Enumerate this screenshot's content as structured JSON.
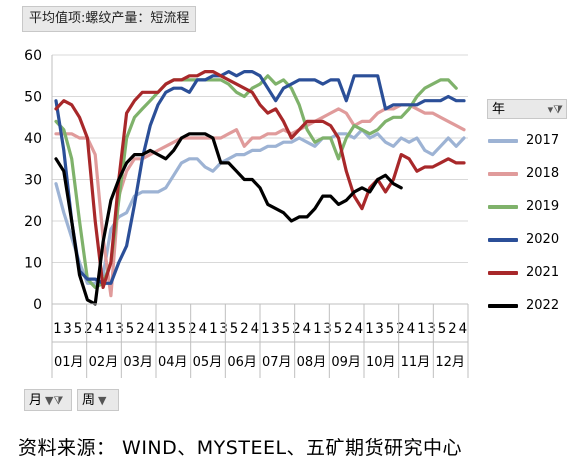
{
  "title_button": "平均值项:螺纹产量：短流程",
  "legend_header": "年",
  "source": "资料来源： WIND、MYSTEEL、五矿期货研究中心",
  "buttons": {
    "month": "月",
    "week": "周"
  },
  "chart_data": {
    "type": "line",
    "ylim": [
      0,
      60
    ],
    "yticks": [
      0,
      10,
      20,
      30,
      40,
      50,
      60
    ],
    "grid": true,
    "legend_position": "right",
    "week_ticks": [
      "1",
      "3",
      "5",
      "2",
      "4",
      "1",
      "3",
      "5",
      "2",
      "4",
      "1",
      "3",
      "5",
      "2",
      "4",
      "1",
      "3",
      "5",
      "2",
      "4",
      "1",
      "3",
      "5",
      "2",
      "4",
      "1",
      "3",
      "5",
      "2",
      "4",
      "1",
      "3",
      "5",
      "2",
      "4",
      "1",
      "3",
      "5",
      "2",
      "4"
    ],
    "month_labels": [
      "01月",
      "02月",
      "03月",
      "04月",
      "05月",
      "06月",
      "07月",
      "08月",
      "09月",
      "10月",
      "11月",
      "12月"
    ],
    "series": [
      {
        "name": "2017",
        "color": "#9db3d4",
        "values": [
          29,
          22,
          16,
          10,
          5,
          5,
          7,
          18,
          21,
          22,
          26,
          27,
          27,
          27,
          28,
          31,
          34,
          35,
          35,
          33,
          32,
          34,
          35,
          36,
          36,
          37,
          37,
          38,
          38,
          39,
          39,
          40,
          39,
          38,
          40,
          40,
          41,
          41,
          40,
          42,
          40,
          41,
          39,
          38,
          40,
          39,
          40,
          37,
          36,
          38,
          40,
          38,
          40
        ]
      },
      {
        "name": "2018",
        "color": "#e09b9b",
        "values": [
          41,
          41,
          41,
          40,
          40,
          36,
          16,
          2,
          26,
          32,
          35,
          35,
          36,
          37,
          38,
          39,
          40,
          40,
          40,
          40,
          40,
          40,
          41,
          42,
          38,
          40,
          40,
          41,
          41,
          42,
          41,
          42,
          43,
          44,
          45,
          46,
          47,
          46,
          43,
          44,
          44,
          46,
          47,
          47,
          48,
          48,
          47,
          46,
          46,
          45,
          44,
          43,
          42
        ]
      },
      {
        "name": "2019",
        "color": "#7fb26b",
        "values": [
          44,
          42,
          35,
          20,
          6,
          4,
          5,
          10,
          25,
          40,
          45,
          47,
          49,
          51,
          53,
          54,
          54,
          54,
          54,
          54,
          54,
          54,
          53,
          51,
          50,
          52,
          53,
          55,
          53,
          54,
          52,
          48,
          42,
          39,
          40,
          40,
          35,
          40,
          43,
          42,
          41,
          42,
          44,
          45,
          45,
          47,
          50,
          52,
          53,
          54,
          54,
          52
        ]
      },
      {
        "name": "2020",
        "color": "#2b4f98",
        "values": [
          49,
          37,
          20,
          8,
          6,
          6,
          5,
          5,
          10,
          14,
          24,
          35,
          43,
          48,
          51,
          52,
          52,
          51,
          54,
          54,
          55,
          55,
          56,
          55,
          56,
          56,
          55,
          52,
          49,
          52,
          53,
          54,
          54,
          54,
          53,
          54,
          54,
          49,
          55,
          55,
          55,
          55,
          47,
          48,
          48,
          48,
          48,
          49,
          49,
          49,
          50,
          49,
          49
        ]
      },
      {
        "name": "2021",
        "color": "#a8282a",
        "values": [
          47,
          49,
          48,
          45,
          40,
          20,
          4,
          10,
          30,
          46,
          49,
          51,
          51,
          51,
          53,
          54,
          54,
          55,
          55,
          56,
          56,
          55,
          54,
          53,
          52,
          51,
          48,
          46,
          47,
          44,
          40,
          42,
          44,
          44,
          44,
          43,
          40,
          32,
          26,
          23,
          28,
          30,
          27,
          30,
          36,
          35,
          32,
          33,
          33,
          34,
          35,
          34,
          34
        ]
      },
      {
        "name": "2022",
        "color": "#000000",
        "values": [
          35,
          32,
          20,
          7,
          1,
          0,
          15,
          25,
          30,
          34,
          36,
          36,
          37,
          36,
          35,
          37,
          40,
          41,
          41,
          41,
          40,
          34,
          34,
          32,
          30,
          30,
          28,
          24,
          23,
          22,
          20,
          21,
          21,
          23,
          26,
          26,
          24,
          25,
          27,
          28,
          27,
          30,
          31,
          29,
          28
        ]
      }
    ]
  }
}
